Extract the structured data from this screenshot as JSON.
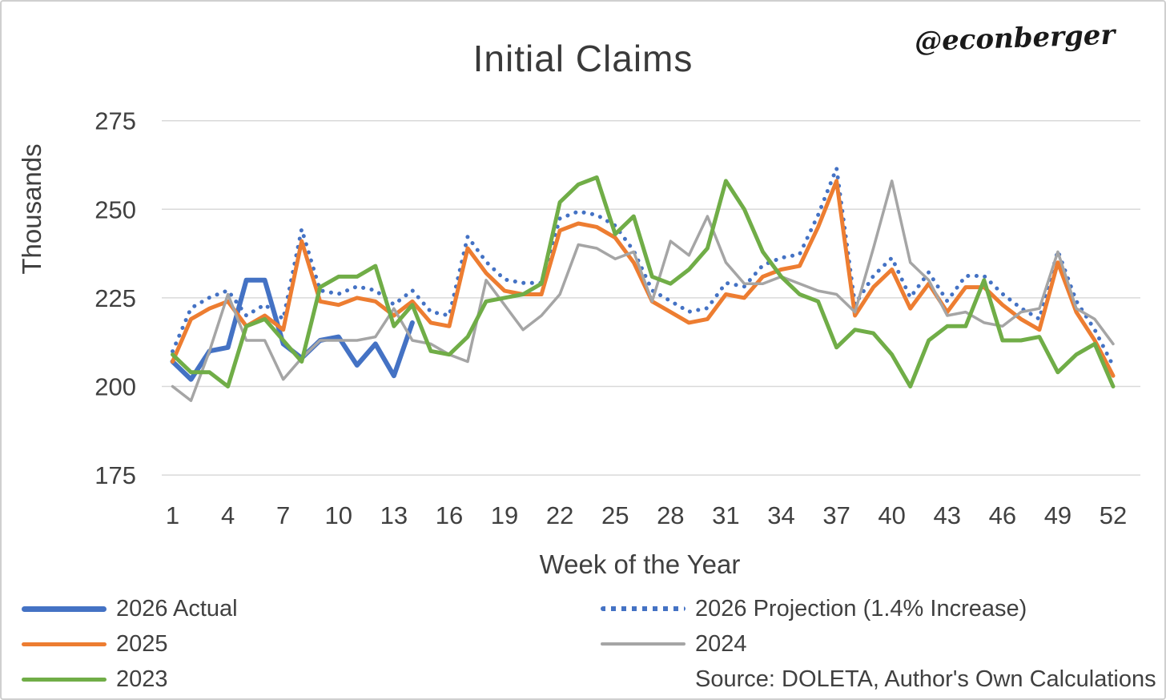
{
  "watermark": "@econberger",
  "chart_data": {
    "type": "line",
    "title": "Initial Claims",
    "xlabel": "Week of the Year",
    "ylabel": "Thousands",
    "units": "thousands of claims",
    "ylim": [
      175,
      275
    ],
    "yticks": [
      175,
      200,
      225,
      250,
      275
    ],
    "xticks": [
      1,
      4,
      7,
      10,
      13,
      16,
      19,
      22,
      25,
      28,
      31,
      34,
      37,
      40,
      43,
      46,
      49,
      52
    ],
    "x_range": [
      1,
      52
    ],
    "grid": "horizontal",
    "grid_color": "#d9d9d9",
    "legend_position": "bottom-two-columns",
    "source_note": "Source: DOLETA, Author's Own Calculations",
    "series": [
      {
        "name": "2026 Actual",
        "color": "#4472C4",
        "style": "solid",
        "width": 6,
        "x_start": 1,
        "values": [
          207,
          202,
          210,
          211,
          230,
          230,
          212,
          208,
          213,
          214,
          206,
          212,
          203,
          218
        ]
      },
      {
        "name": "2026 Projection (1.4% Increase)",
        "color": "#4472C4",
        "style": "dotted",
        "width": 5,
        "x_start": 1,
        "values": [
          209.9,
          222.1,
          225.1,
          227.1,
          220.0,
          223.1,
          219.0,
          244.4,
          227.1,
          226.1,
          228.2,
          227.1,
          223.1,
          227.1,
          221.1,
          220.0,
          242.3,
          235.2,
          230.2,
          229.2,
          229.2,
          247.4,
          249.4,
          248.4,
          245.4,
          238.3,
          227.1,
          224.1,
          221.1,
          222.1,
          229.2,
          228.2,
          234.2,
          236.3,
          237.3,
          248.4,
          261.6,
          223.1,
          231.2,
          236.3,
          225.1,
          232.2,
          224.1,
          231.2,
          231.2,
          226.1,
          222.1,
          219.0,
          238.3,
          224.1,
          216.0,
          205.8
        ]
      },
      {
        "name": "2025",
        "color": "#ED7D31",
        "style": "solid",
        "width": 5,
        "x_start": 1,
        "values": [
          207,
          219,
          222,
          224,
          217,
          220,
          216,
          241,
          224,
          223,
          225,
          224,
          220,
          224,
          218,
          217,
          239,
          232,
          227,
          226,
          226,
          244,
          246,
          245,
          242,
          235,
          224,
          221,
          218,
          219,
          226,
          225,
          231,
          233,
          234,
          245,
          258,
          220,
          228,
          233,
          222,
          229,
          221,
          228,
          228,
          223,
          219,
          216,
          235,
          221,
          213,
          203
        ]
      },
      {
        "name": "2024",
        "color": "#A5A5A5",
        "style": "solid",
        "width": 3.5,
        "x_start": 1,
        "values": [
          200,
          196,
          210,
          226,
          213,
          213,
          202,
          208,
          213,
          213,
          213,
          214,
          222,
          213,
          212,
          209,
          207,
          230,
          223,
          216,
          220,
          226,
          240,
          239,
          236,
          238,
          224,
          241,
          237,
          248,
          235,
          229,
          229,
          231,
          229,
          227,
          226,
          221,
          239,
          258,
          235,
          230,
          220,
          221,
          218,
          217,
          221,
          222,
          238,
          222,
          219,
          212
        ]
      },
      {
        "name": "2023",
        "color": "#70AD47",
        "style": "solid",
        "width": 5,
        "x_start": 1,
        "values": [
          209,
          204,
          204,
          200,
          217,
          219,
          213,
          207,
          228,
          231,
          231,
          234,
          217,
          223,
          210,
          209,
          214,
          224,
          225,
          226,
          229,
          252,
          257,
          259,
          243,
          248,
          231,
          229,
          233,
          239,
          258,
          250,
          238,
          231,
          226,
          224,
          211,
          216,
          215,
          209,
          200,
          213,
          217,
          217,
          230,
          213,
          213,
          214,
          204,
          209,
          212,
          200
        ]
      }
    ],
    "legend": {
      "left_column_series_indexes": [
        0,
        2,
        4
      ],
      "right_column_series_indexes": [
        1,
        3
      ]
    }
  }
}
